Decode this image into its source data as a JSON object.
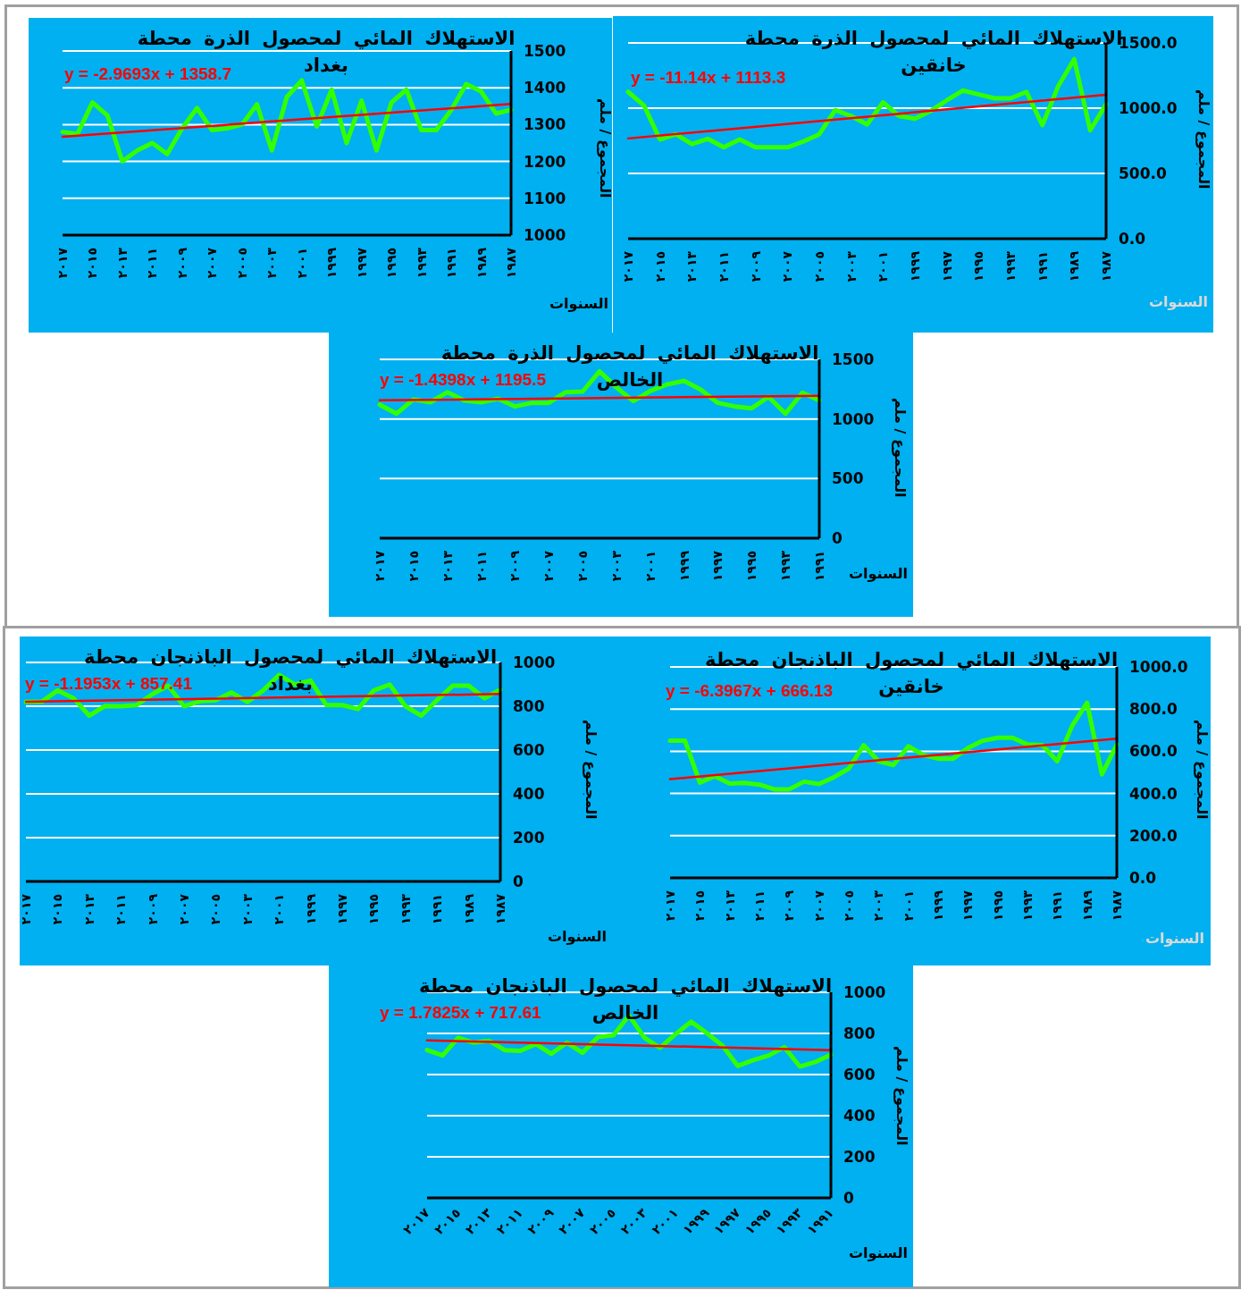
{
  "chart_data": [
    {
      "type": "line",
      "title": "الاستهلاك المائي لمحصول الذرة محطة بغداد",
      "xlabel": "السنوات",
      "ylabel": "المجموع / ملم",
      "annotations": [
        "y = -2.9693x + 1358.7"
      ],
      "marker": "none",
      "grid": "y",
      "ylim": [
        1000,
        1500
      ],
      "yticks": [
        1000,
        1100,
        1200,
        1300,
        1400,
        1500
      ],
      "categories": [
        "٢٠١٧",
        null,
        "٢٠١٥",
        null,
        "٢٠١٣",
        null,
        "٢٠١١",
        null,
        "٢٠٠٩",
        null,
        "٢٠٠٧",
        null,
        "٢٠٠٥",
        null,
        "٢٠٠٣",
        null,
        "٢٠٠١",
        null,
        "١٩٩٩",
        null,
        "١٩٩٧",
        null,
        "١٩٩٥",
        null,
        "١٩٩٣",
        null,
        "١٩٩١",
        null,
        "١٩٨٩",
        null,
        "١٩٨٧"
      ],
      "series": [
        {
          "color": "#33ff00",
          "values": [
            1280,
            1275,
            1360,
            1325,
            1200,
            1230,
            1250,
            1220,
            1290,
            1345,
            1285,
            1290,
            1300,
            1355,
            1230,
            1375,
            1420,
            1295,
            1395,
            1250,
            1365,
            1230,
            1360,
            1395,
            1285,
            1285,
            1340,
            1410,
            1390,
            1330,
            1340
          ]
        },
        {
          "type": "line",
          "color": "#ff0000",
          "values": [
            1267,
            null,
            null,
            null,
            null,
            null,
            null,
            null,
            null,
            null,
            null,
            null,
            null,
            null,
            null,
            null,
            null,
            null,
            null,
            null,
            null,
            null,
            null,
            null,
            null,
            null,
            null,
            null,
            null,
            null,
            1356
          ]
        }
      ]
    },
    {
      "type": "line",
      "title": "الاستهلاك المائي لمحصول الذرة محطة خانقين",
      "xlabel": "السنوات",
      "ylabel": "المجموع / ملم",
      "annotations": [
        "y = -11.14x + 1113.3"
      ],
      "marker": "none",
      "grid": "y",
      "ylim": [
        0,
        1500
      ],
      "yticks": [
        {
          "value": 0,
          "label": "0.0"
        },
        {
          "value": 500,
          "label": "500.0"
        },
        {
          "value": 1000,
          "label": "1000.0"
        },
        {
          "value": 1500,
          "label": "1500.0"
        }
      ],
      "categories": [
        "٢٠١٧",
        null,
        "٢٠١٥",
        null,
        "٢٠١٣",
        null,
        "٢٠١١",
        null,
        "٢٠٠٩",
        null,
        "٢٠٠٧",
        null,
        "٢٠٠٥",
        null,
        "٢٠٠٣",
        null,
        "٢٠٠١",
        null,
        "١٩٩٩",
        null,
        "١٩٩٧",
        null,
        "١٩٩٥",
        null,
        "١٩٩٣",
        null,
        "١٩٩١",
        null,
        "١٩٨٩",
        null,
        "١٩٨٧"
      ],
      "series": [
        {
          "color": "#33ff00",
          "values": [
            1125,
            1020,
            760,
            800,
            725,
            765,
            700,
            760,
            700,
            700,
            700,
            745,
            800,
            985,
            940,
            875,
            1045,
            940,
            920,
            980,
            1060,
            1135,
            1105,
            1075,
            1075,
            1125,
            870,
            1170,
            1375,
            830,
            1030
          ]
        },
        {
          "type": "line",
          "color": "#ff0000",
          "values": [
            768,
            null,
            null,
            null,
            null,
            null,
            null,
            null,
            null,
            null,
            null,
            null,
            null,
            null,
            null,
            null,
            null,
            null,
            null,
            null,
            null,
            null,
            null,
            null,
            null,
            null,
            null,
            null,
            null,
            null,
            1102
          ]
        }
      ]
    },
    {
      "type": "line",
      "title": "الاستهلاك المائي لمحصول الذرة محطة الخالص",
      "xlabel": "السنوات",
      "ylabel": "المجموع / ملم",
      "annotations": [
        "y = -1.4398x + 1195.5"
      ],
      "marker": "none",
      "grid": "y",
      "ylim": [
        0,
        1500
      ],
      "yticks": [
        0,
        500,
        1000,
        1500
      ],
      "categories": [
        "٢٠١٧",
        null,
        "٢٠١٥",
        null,
        "٢٠١٣",
        null,
        "٢٠١١",
        null,
        "٢٠٠٩",
        null,
        "٢٠٠٧",
        null,
        "٢٠٠٥",
        null,
        "٢٠٠٣",
        null,
        "٢٠٠١",
        null,
        "١٩٩٩",
        null,
        "١٩٩٧",
        null,
        "١٩٩٥",
        null,
        "١٩٩٣",
        null,
        "١٩٩١"
      ],
      "series": [
        {
          "color": "#33ff00",
          "values": [
            1120,
            1045,
            1165,
            1140,
            1225,
            1155,
            1140,
            1170,
            1105,
            1135,
            1135,
            1225,
            1230,
            1400,
            1265,
            1150,
            1235,
            1290,
            1320,
            1245,
            1135,
            1105,
            1090,
            1185,
            1045,
            1220,
            1155
          ]
        },
        {
          "type": "line",
          "color": "#ff0000",
          "values": [
            1157,
            null,
            null,
            null,
            null,
            null,
            null,
            null,
            null,
            null,
            null,
            null,
            null,
            null,
            null,
            null,
            null,
            null,
            null,
            null,
            null,
            null,
            null,
            null,
            null,
            null,
            1194
          ]
        }
      ]
    },
    {
      "type": "line",
      "title": "الاستهلاك المائي لمحصول الباذنجان محطة بغداد",
      "xlabel": "السنوات",
      "ylabel": "المجموع / ملم",
      "annotations": [
        "y = -1.1953x + 857.41"
      ],
      "marker": "none",
      "grid": "y",
      "ylim": [
        0,
        1000
      ],
      "yticks": [
        0,
        200,
        400,
        600,
        800,
        1000
      ],
      "categories": [
        "٢٠١٧",
        null,
        "٢٠١٥",
        null,
        "٢٠١٣",
        null,
        "٢٠١١",
        null,
        "٢٠٠٩",
        null,
        "٢٠٠٧",
        null,
        "٢٠٠٥",
        null,
        "٢٠٠٣",
        null,
        "٢٠٠١",
        null,
        "١٩٩٩",
        null,
        "١٩٩٧",
        null,
        "١٩٩٥",
        null,
        "١٩٩٣",
        null,
        "١٩٩١",
        null,
        "١٩٨٩",
        null,
        "١٩٨٧"
      ],
      "series": [
        {
          "color": "#33ff00",
          "values": [
            820,
            820,
            872,
            837,
            757,
            801,
            800,
            805,
            855,
            894,
            800,
            823,
            828,
            863,
            820,
            872,
            943,
            899,
            917,
            805,
            805,
            787,
            872,
            899,
            800,
            757,
            828,
            894,
            894,
            837,
            876
          ]
        },
        {
          "type": "line",
          "color": "#ff0000",
          "values": [
            820,
            null,
            null,
            null,
            null,
            null,
            null,
            null,
            null,
            null,
            null,
            null,
            null,
            null,
            null,
            null,
            null,
            null,
            null,
            null,
            null,
            null,
            null,
            null,
            null,
            null,
            null,
            null,
            null,
            null,
            856
          ]
        }
      ]
    },
    {
      "type": "line",
      "title": "الاستهلاك المائي لمحصول الباذنجان محطة خانقين",
      "xlabel": "السنوات",
      "ylabel": "المجموع / ملم",
      "annotations": [
        "y = -6.3967x + 666.13"
      ],
      "marker": "none",
      "grid": "y",
      "ylim": [
        0,
        1000
      ],
      "yticks": [
        {
          "value": 0,
          "label": "0.0"
        },
        {
          "value": 200,
          "label": "200.0"
        },
        {
          "value": 400,
          "label": "400.0"
        },
        {
          "value": 600,
          "label": "600.0"
        },
        {
          "value": 800,
          "label": "800.0"
        },
        {
          "value": 1000,
          "label": "1000.0"
        }
      ],
      "categories": [
        "٢٠١٧",
        null,
        "٢٠١٥",
        null,
        "٢٠١٣",
        null,
        "٢٠١١",
        null,
        "٢٠٠٩",
        null,
        "٢٠٠٧",
        null,
        "٢٠٠٥",
        null,
        "٢٠٠٣",
        null,
        "٢٠٠١",
        null,
        "١٩٩٩",
        null,
        "١٩٩٧",
        null,
        "١٩٩٥",
        null,
        "١٩٩٣",
        null,
        "١٩٩١",
        null,
        "١٩٨٩",
        null,
        "١٩٨٧"
      ],
      "series": [
        {
          "color": "#33ff00",
          "values": [
            650,
            650,
            452,
            482,
            447,
            450,
            442,
            420,
            420,
            456,
            445,
            477,
            518,
            629,
            553,
            535,
            624,
            583,
            565,
            565,
            615,
            650,
            664,
            664,
            632,
            629,
            553,
            721,
            830,
            491,
            632
          ]
        },
        {
          "type": "line",
          "color": "#ff0000",
          "values": [
            468,
            null,
            null,
            null,
            null,
            null,
            null,
            null,
            null,
            null,
            null,
            null,
            null,
            null,
            null,
            null,
            null,
            null,
            null,
            null,
            null,
            null,
            null,
            null,
            null,
            null,
            null,
            null,
            null,
            null,
            660
          ]
        }
      ]
    },
    {
      "type": "line",
      "title": "الاستهلاك المائي لمحصول الباذنجان محطة الخالص",
      "xlabel": "السنوات",
      "ylabel": "المجموع / ملم",
      "annotations": [
        "y = 1.7825x + 717.61"
      ],
      "marker": "none",
      "grid": "y",
      "ylim": [
        0,
        1000
      ],
      "yticks": [
        0,
        200,
        400,
        600,
        800,
        1000
      ],
      "categories": [
        "٢٠١٧",
        null,
        "٢٠١٥",
        null,
        "٢٠١٣",
        null,
        "٢٠١١",
        null,
        "٢٠٠٩",
        null,
        "٢٠٠٧",
        null,
        "٢٠٠٥",
        null,
        "٢٠٠٣",
        null,
        "٢٠٠١",
        null,
        "١٩٩٩",
        null,
        "١٩٩٧",
        null,
        "١٩٩٥",
        null,
        "١٩٩٣",
        null,
        "١٩٩١"
      ],
      "series": [
        {
          "color": "#33ff00",
          "values": [
            719,
            693,
            779,
            755,
            764,
            719,
            715,
            748,
            701,
            755,
            706,
            782,
            791,
            887,
            779,
            730,
            797,
            857,
            802,
            742,
            642,
            670,
            693,
            733,
            639,
            661,
            697
          ]
        },
        {
          "type": "line",
          "color": "#ff0000",
          "values": [
            766,
            null,
            null,
            null,
            null,
            null,
            null,
            null,
            null,
            null,
            null,
            null,
            null,
            null,
            null,
            null,
            null,
            null,
            null,
            null,
            null,
            null,
            null,
            null,
            null,
            null,
            719
          ]
        }
      ]
    }
  ]
}
